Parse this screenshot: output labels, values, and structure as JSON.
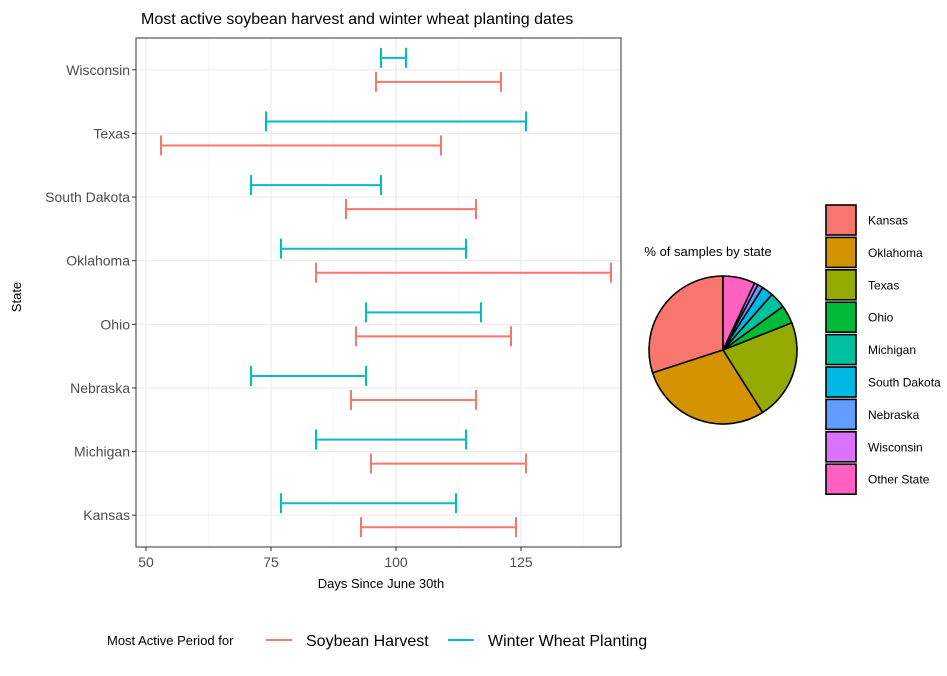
{
  "chart_data": [
    {
      "type": "range",
      "title": "Most active soybean harvest and winter wheat planting dates",
      "xlabel": "Days Since June 30th",
      "ylabel": "State",
      "xlim": [
        48,
        145
      ],
      "xticks": [
        50,
        75,
        100,
        125
      ],
      "grid": true,
      "categories": [
        "Wisconsin",
        "Texas",
        "South Dakota",
        "Oklahoma",
        "Ohio",
        "Nebraska",
        "Michigan",
        "Kansas"
      ],
      "legend": {
        "title": "Most Active Period for",
        "position": "bottom"
      },
      "series": [
        {
          "name": "Soybean Harvest",
          "color": "#F8766D",
          "ranges": [
            {
              "state": "Wisconsin",
              "start": 96,
              "end": 121
            },
            {
              "state": "Texas",
              "start": 53,
              "end": 109
            },
            {
              "state": "South Dakota",
              "start": 90,
              "end": 116
            },
            {
              "state": "Oklahoma",
              "start": 84,
              "end": 143
            },
            {
              "state": "Ohio",
              "start": 92,
              "end": 123
            },
            {
              "state": "Nebraska",
              "start": 91,
              "end": 116
            },
            {
              "state": "Michigan",
              "start": 95,
              "end": 126
            },
            {
              "state": "Kansas",
              "start": 93,
              "end": 124
            }
          ]
        },
        {
          "name": "Winter Wheat Planting",
          "color": "#00BFC4",
          "ranges": [
            {
              "state": "Wisconsin",
              "start": 97,
              "end": 102
            },
            {
              "state": "Texas",
              "start": 74,
              "end": 126
            },
            {
              "state": "South Dakota",
              "start": 71,
              "end": 97
            },
            {
              "state": "Oklahoma",
              "start": 77,
              "end": 114
            },
            {
              "state": "Ohio",
              "start": 94,
              "end": 117
            },
            {
              "state": "Nebraska",
              "start": 71,
              "end": 94
            },
            {
              "state": "Michigan",
              "start": 84,
              "end": 114
            },
            {
              "state": "Kansas",
              "start": 77,
              "end": 112
            }
          ]
        }
      ]
    },
    {
      "type": "pie",
      "title": "% of samples by state",
      "legend_position": "right",
      "slices": [
        {
          "label": "Kansas",
          "value": 30,
          "color": "#F8766D"
        },
        {
          "label": "Oklahoma",
          "value": 29,
          "color": "#D39200"
        },
        {
          "label": "Texas",
          "value": 22,
          "color": "#93AA00"
        },
        {
          "label": "Ohio",
          "value": 4,
          "color": "#00BA38"
        },
        {
          "label": "Michigan",
          "value": 3.5,
          "color": "#00C19F"
        },
        {
          "label": "South Dakota",
          "value": 2.5,
          "color": "#00B9E3"
        },
        {
          "label": "Nebraska",
          "value": 1.2,
          "color": "#619CFF"
        },
        {
          "label": "Wisconsin",
          "value": 0.8,
          "color": "#DB72FB"
        },
        {
          "label": "Other State",
          "value": 7,
          "color": "#FF61C3"
        }
      ]
    }
  ]
}
